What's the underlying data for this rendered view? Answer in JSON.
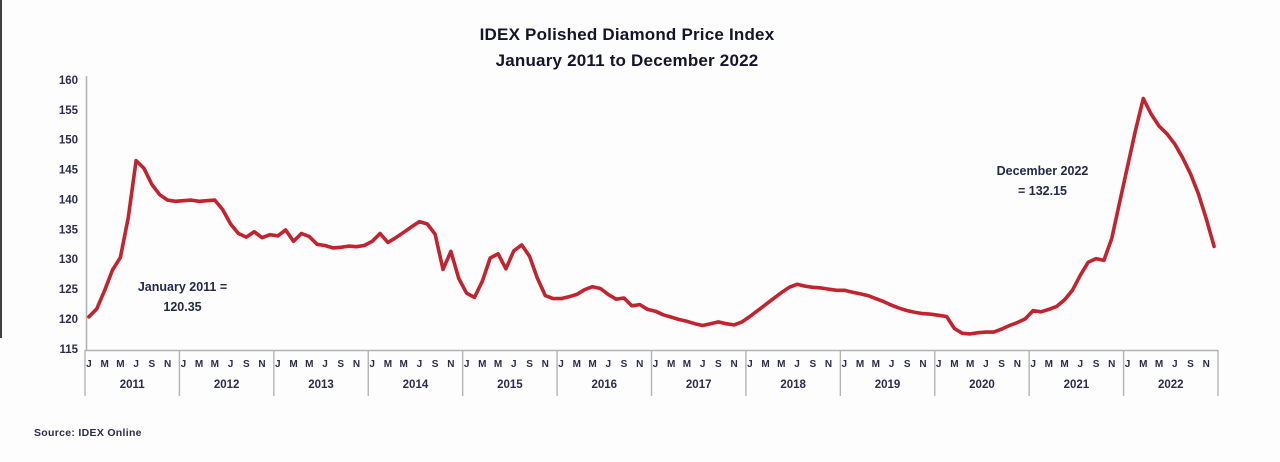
{
  "title": {
    "line1": "IDEX Polished Diamond Price Index",
    "line2": "January 2011 to December 2022"
  },
  "annotations": {
    "start": {
      "line1": "January 2011 =",
      "line2": "120.35"
    },
    "end": {
      "line1": "December 2022",
      "line2": "= 132.15"
    }
  },
  "source": "Source:  IDEX Online",
  "colors": {
    "line": "#c2232e",
    "axis": "#b3b3b3",
    "text": "#2b2b4f",
    "title_text": "#14142b"
  },
  "chart_data": {
    "type": "line",
    "title": "IDEX Polished Diamond Price Index",
    "subtitle": "January 2011 to December 2022",
    "ylabel": "",
    "xlabel": "",
    "ylim": [
      115,
      160
    ],
    "ytick_step": 5,
    "grid": false,
    "legend": false,
    "x_unit": "month",
    "month_tick_labels": [
      "J",
      "M",
      "M",
      "J",
      "S",
      "N"
    ],
    "years": [
      "2011",
      "2012",
      "2013",
      "2014",
      "2015",
      "2016",
      "2017",
      "2018",
      "2019",
      "2020",
      "2021",
      "2022"
    ],
    "series_name": "IDEX Polished Diamond Price Index",
    "values_by_year": {
      "2011": [
        120.35,
        121.7,
        124.8,
        128.2,
        130.3,
        137.0,
        146.5,
        145.2,
        142.5,
        140.8,
        139.9,
        139.7
      ],
      "2012": [
        139.8,
        139.9,
        139.7,
        139.8,
        139.9,
        138.3,
        135.9,
        134.3,
        133.7,
        134.6,
        133.6,
        134.1
      ],
      "2013": [
        133.9,
        134.9,
        133.0,
        134.3,
        133.8,
        132.5,
        132.3,
        131.9,
        132.0,
        132.2,
        132.1,
        132.3
      ],
      "2014": [
        133.0,
        134.3,
        132.8,
        133.6,
        134.5,
        135.4,
        136.3,
        135.9,
        134.2,
        128.3,
        131.3,
        126.8
      ],
      "2015": [
        124.3,
        123.6,
        126.3,
        130.2,
        130.9,
        128.4,
        131.4,
        132.4,
        130.5,
        126.8,
        123.9,
        123.4
      ],
      "2016": [
        123.4,
        123.7,
        124.1,
        124.9,
        125.4,
        125.1,
        124.1,
        123.3,
        123.5,
        122.2,
        122.4,
        121.6
      ],
      "2017": [
        121.3,
        120.7,
        120.3,
        119.9,
        119.6,
        119.2,
        118.9,
        119.2,
        119.5,
        119.2,
        119.0,
        119.5
      ],
      "2018": [
        120.4,
        121.4,
        122.4,
        123.4,
        124.4,
        125.3,
        125.8,
        125.5,
        125.3,
        125.2,
        125.0,
        124.8
      ],
      "2019": [
        124.8,
        124.5,
        124.2,
        123.9,
        123.4,
        122.9,
        122.3,
        121.8,
        121.4,
        121.1,
        120.9,
        120.8
      ],
      "2020": [
        120.6,
        120.4,
        118.4,
        117.6,
        117.5,
        117.7,
        117.8,
        117.8,
        118.3,
        118.9,
        119.4,
        120.0
      ],
      "2021": [
        121.4,
        121.2,
        121.6,
        122.1,
        123.2,
        124.8,
        127.3,
        129.5,
        130.1,
        129.8,
        133.5,
        139.5
      ],
      "2022": [
        145.5,
        151.5,
        156.9,
        154.3,
        152.3,
        151.0,
        149.3,
        147.0,
        144.3,
        141.0,
        136.8,
        132.15
      ]
    },
    "key_points": {
      "start": {
        "label": "January 2011",
        "value": 120.35
      },
      "peak_2011": {
        "label": "July 2011",
        "value": 146.5
      },
      "peak_2022": {
        "label": "March 2022",
        "value": 156.9
      },
      "end": {
        "label": "December 2022",
        "value": 132.15
      }
    }
  }
}
